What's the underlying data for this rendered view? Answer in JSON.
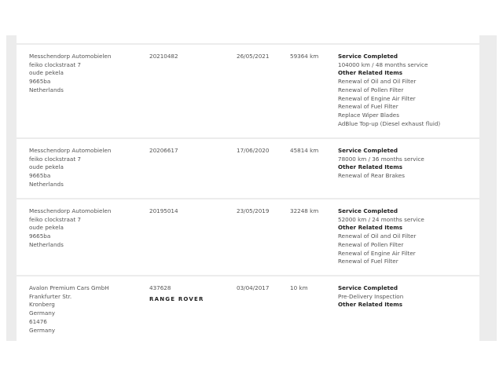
{
  "records": [
    {
      "dealer": [
        "Messchendorp Automobielen",
        "feiko clockstraat 7",
        "oude pekela",
        "9665ba",
        "Netherlands"
      ],
      "id": "20210482",
      "date": "26/05/2021",
      "mileage": "59364 km",
      "service_heading": "Service Completed",
      "service": "104000 km / 48 months service",
      "other_heading": "Other Related Items",
      "items": [
        "Renewal of Oil and Oil Filter",
        "Renewal of Pollen Filter",
        "Renewal of Engine Air Filter",
        "Renewal of Fuel Filter",
        "Replace Wiper Blades",
        "AdBlue Top-up (Diesel exhaust fluid)"
      ]
    },
    {
      "dealer": [
        "Messchendorp Automobielen",
        "feiko clockstraat 7",
        "oude pekela",
        "9665ba",
        "Netherlands"
      ],
      "id": "20206617",
      "date": "17/06/2020",
      "mileage": "45814 km",
      "service_heading": "Service Completed",
      "service": "78000 km / 36 months service",
      "other_heading": "Other Related Items",
      "items": [
        "Renewal of Rear Brakes"
      ]
    },
    {
      "dealer": [
        "Messchendorp Automobielen",
        "feiko clockstraat 7",
        "oude pekela",
        "9665ba",
        "Netherlands"
      ],
      "id": "20195014",
      "date": "23/05/2019",
      "mileage": "32248 km",
      "service_heading": "Service Completed",
      "service": "52000 km / 24 months service",
      "other_heading": "Other Related Items",
      "items": [
        "Renewal of Oil and Oil Filter",
        "Renewal of Pollen Filter",
        "Renewal of Engine Air Filter",
        "Renewal of Fuel Filter"
      ]
    },
    {
      "dealer": [
        "Avalon Premium Cars GmbH",
        "Frankfurter Str.",
        "Kronberg",
        "Germany",
        "61476",
        "Germany"
      ],
      "id": "437628",
      "logo": "RANGE ROVER",
      "date": "03/04/2017",
      "mileage": "10 km",
      "service_heading": "Service Completed",
      "service": "Pre-Delivery Inspection",
      "other_heading": "Other Related Items",
      "items": []
    }
  ]
}
